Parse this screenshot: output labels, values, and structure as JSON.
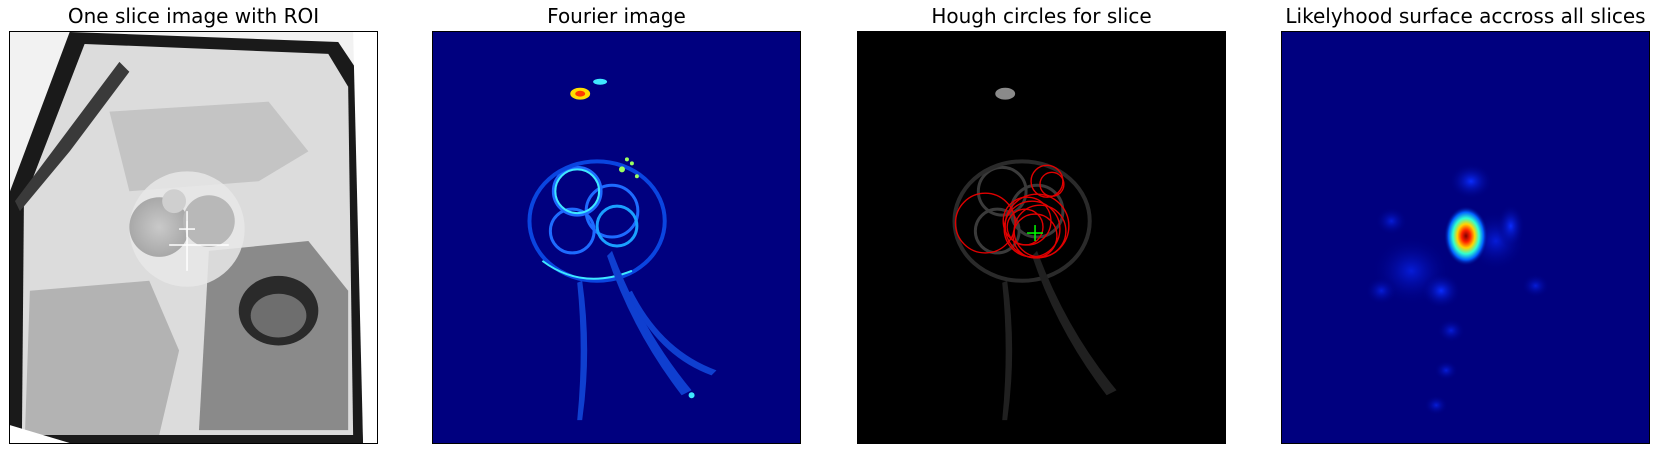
{
  "panels": [
    {
      "title": "One slice image with ROI",
      "image": "grayscale-mri-slice-with-circular-roi"
    },
    {
      "title": "Fourier image",
      "image": "jet-colormap-fourier-harmonic-image"
    },
    {
      "title": "Hough circles for slice",
      "image": "dark-edge-image-with-red-hough-circles"
    },
    {
      "title": "Likelyhood surface accross all slices",
      "image": "jet-colormap-likelihood-heatmap"
    }
  ],
  "colors": {
    "jet_background": "#00007f",
    "hough_circle": "#e00000",
    "hough_center_marker": "#00ff00",
    "roi_center_marker": "#ffffff"
  }
}
